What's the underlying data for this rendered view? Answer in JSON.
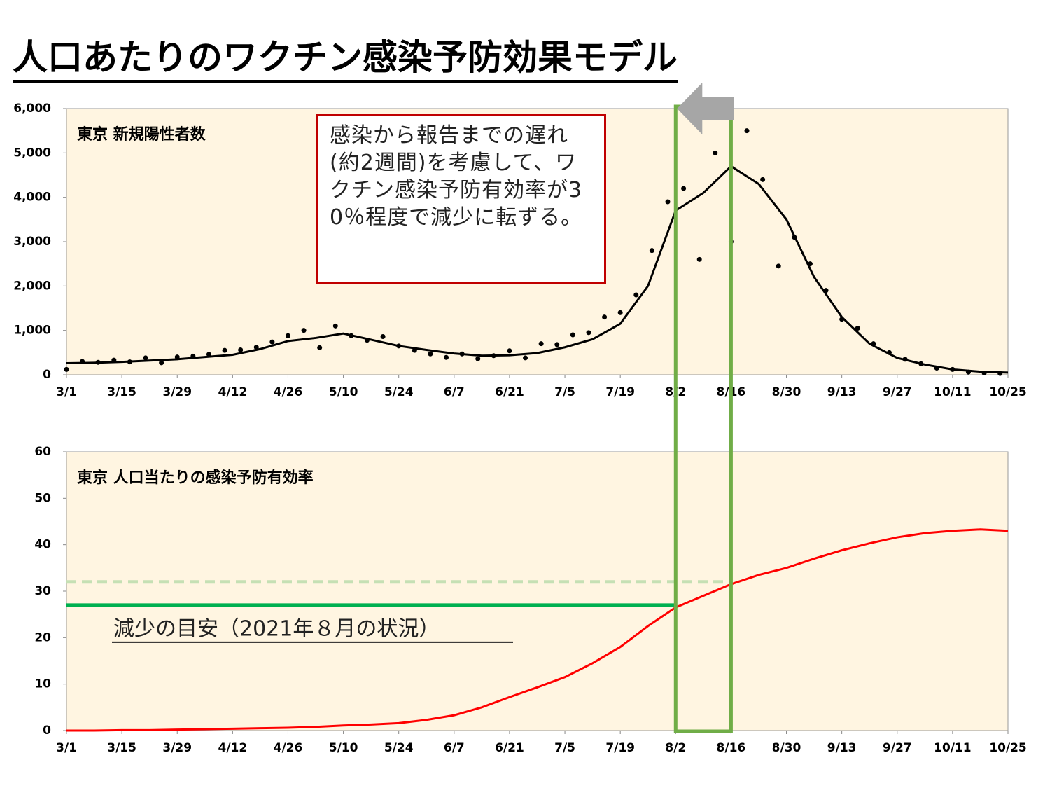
{
  "title": "人口あたりのワクチン感染予防効果モデル",
  "callout": "感染から報告までの遅れ(約2週間)を考慮して、ワクチン感染予防有効率が30％程度で減少に転ずる。",
  "highlight_window": [
    154,
    168
  ],
  "chart_data": [
    {
      "type": "line",
      "label": "東京 新規陽性者数",
      "xlim": [
        0,
        238
      ],
      "xticks": [
        {
          "value": 0,
          "label": "3/1"
        },
        {
          "value": 14,
          "label": "3/15"
        },
        {
          "value": 28,
          "label": "3/29"
        },
        {
          "value": 42,
          "label": "4/12"
        },
        {
          "value": 56,
          "label": "4/26"
        },
        {
          "value": 70,
          "label": "5/10"
        },
        {
          "value": 84,
          "label": "5/24"
        },
        {
          "value": 98,
          "label": "6/7"
        },
        {
          "value": 112,
          "label": "6/21"
        },
        {
          "value": 126,
          "label": "7/5"
        },
        {
          "value": 140,
          "label": "7/19"
        },
        {
          "value": 154,
          "label": "8/2"
        },
        {
          "value": 168,
          "label": "8/16"
        },
        {
          "value": 182,
          "label": "8/30"
        },
        {
          "value": 196,
          "label": "9/13"
        },
        {
          "value": 210,
          "label": "9/27"
        },
        {
          "value": 224,
          "label": "10/11"
        },
        {
          "value": 238,
          "label": "10/25"
        }
      ],
      "ylim": [
        0,
        6000
      ],
      "yticks": [
        0,
        {
          "value": 1000,
          "label": "1,000"
        },
        {
          "value": 2000,
          "label": "2,000"
        },
        {
          "value": 3000,
          "label": "3,000"
        },
        {
          "value": 4000,
          "label": "4,000"
        },
        {
          "value": 5000,
          "label": "5,000"
        },
        {
          "value": 6000,
          "label": "6,000"
        }
      ],
      "series": [
        {
          "mode": "scatter",
          "color": "#000000",
          "x": [
            0,
            4,
            8,
            12,
            16,
            20,
            24,
            28,
            32,
            36,
            40,
            44,
            48,
            52,
            56,
            60,
            64,
            68,
            72,
            76,
            80,
            84,
            88,
            92,
            96,
            100,
            104,
            108,
            112,
            116,
            120,
            124,
            128,
            132,
            136,
            140,
            144,
            148,
            152,
            156,
            160,
            164,
            168,
            172,
            176,
            180,
            184,
            188,
            192,
            196,
            200,
            204,
            208,
            212,
            216,
            220,
            224,
            228,
            232,
            236
          ],
          "values": [
            120,
            300,
            280,
            330,
            290,
            380,
            270,
            400,
            420,
            460,
            550,
            560,
            620,
            740,
            880,
            1000,
            610,
            1100,
            880,
            780,
            860,
            650,
            550,
            470,
            390,
            470,
            360,
            430,
            540,
            380,
            700,
            680,
            900,
            950,
            1300,
            1400,
            1800,
            2800,
            3900,
            4200,
            2600,
            5000,
            3000,
            5500,
            4400,
            2450,
            3100,
            2500,
            1900,
            1250,
            1050,
            700,
            500,
            350,
            250,
            150,
            120,
            60,
            40,
            30
          ]
        },
        {
          "mode": "line",
          "color": "#000000",
          "x": [
            0,
            7,
            14,
            21,
            28,
            35,
            42,
            49,
            56,
            63,
            70,
            77,
            84,
            91,
            98,
            105,
            112,
            119,
            126,
            133,
            140,
            147,
            154,
            161,
            168,
            175,
            182,
            189,
            196,
            203,
            210,
            217,
            224,
            231,
            238
          ],
          "values": [
            260,
            270,
            290,
            320,
            350,
            400,
            450,
            580,
            760,
            830,
            930,
            790,
            650,
            560,
            480,
            430,
            440,
            490,
            620,
            800,
            1150,
            2000,
            3700,
            4100,
            4700,
            4300,
            3500,
            2200,
            1300,
            700,
            380,
            230,
            120,
            70,
            50
          ]
        }
      ]
    },
    {
      "type": "line",
      "label": "東京 人口当たりの感染予防有効率",
      "xlim": [
        0,
        238
      ],
      "xticks": [
        {
          "value": 0,
          "label": "3/1"
        },
        {
          "value": 14,
          "label": "3/15"
        },
        {
          "value": 28,
          "label": "3/29"
        },
        {
          "value": 42,
          "label": "4/12"
        },
        {
          "value": 56,
          "label": "4/26"
        },
        {
          "value": 70,
          "label": "5/10"
        },
        {
          "value": 84,
          "label": "5/24"
        },
        {
          "value": 98,
          "label": "6/7"
        },
        {
          "value": 112,
          "label": "6/21"
        },
        {
          "value": 126,
          "label": "7/5"
        },
        {
          "value": 140,
          "label": "7/19"
        },
        {
          "value": 154,
          "label": "8/2"
        },
        {
          "value": 168,
          "label": "8/16"
        },
        {
          "value": 182,
          "label": "8/30"
        },
        {
          "value": 196,
          "label": "9/13"
        },
        {
          "value": 210,
          "label": "9/27"
        },
        {
          "value": 224,
          "label": "10/11"
        },
        {
          "value": 238,
          "label": "10/25"
        }
      ],
      "ylim": [
        0,
        60
      ],
      "yticks": [
        0,
        10,
        20,
        30,
        40,
        50,
        60
      ],
      "series": [
        {
          "mode": "line",
          "color": "#ff0000",
          "x": [
            0,
            7,
            14,
            21,
            28,
            35,
            42,
            49,
            56,
            63,
            70,
            77,
            84,
            91,
            98,
            105,
            112,
            119,
            126,
            133,
            140,
            147,
            154,
            161,
            168,
            175,
            182,
            189,
            196,
            203,
            210,
            217,
            224,
            231,
            238
          ],
          "values": [
            0,
            0,
            0.1,
            0.1,
            0.2,
            0.3,
            0.4,
            0.5,
            0.6,
            0.8,
            1.1,
            1.3,
            1.6,
            2.3,
            3.3,
            5,
            7.2,
            9.3,
            11.5,
            14.5,
            18,
            22.5,
            26.5,
            29,
            31.5,
            33.5,
            35,
            37,
            38.8,
            40.3,
            41.6,
            42.5,
            43,
            43.3,
            43
          ]
        }
      ],
      "reference_lines": [
        {
          "value": 32,
          "x_end": 168,
          "color": "#c5e0b4",
          "dashed": true
        },
        {
          "value": 27,
          "x_end": 154,
          "color": "#00b050",
          "dashed": false
        }
      ],
      "note": "減少の目安（2021年８月の状況）"
    }
  ]
}
